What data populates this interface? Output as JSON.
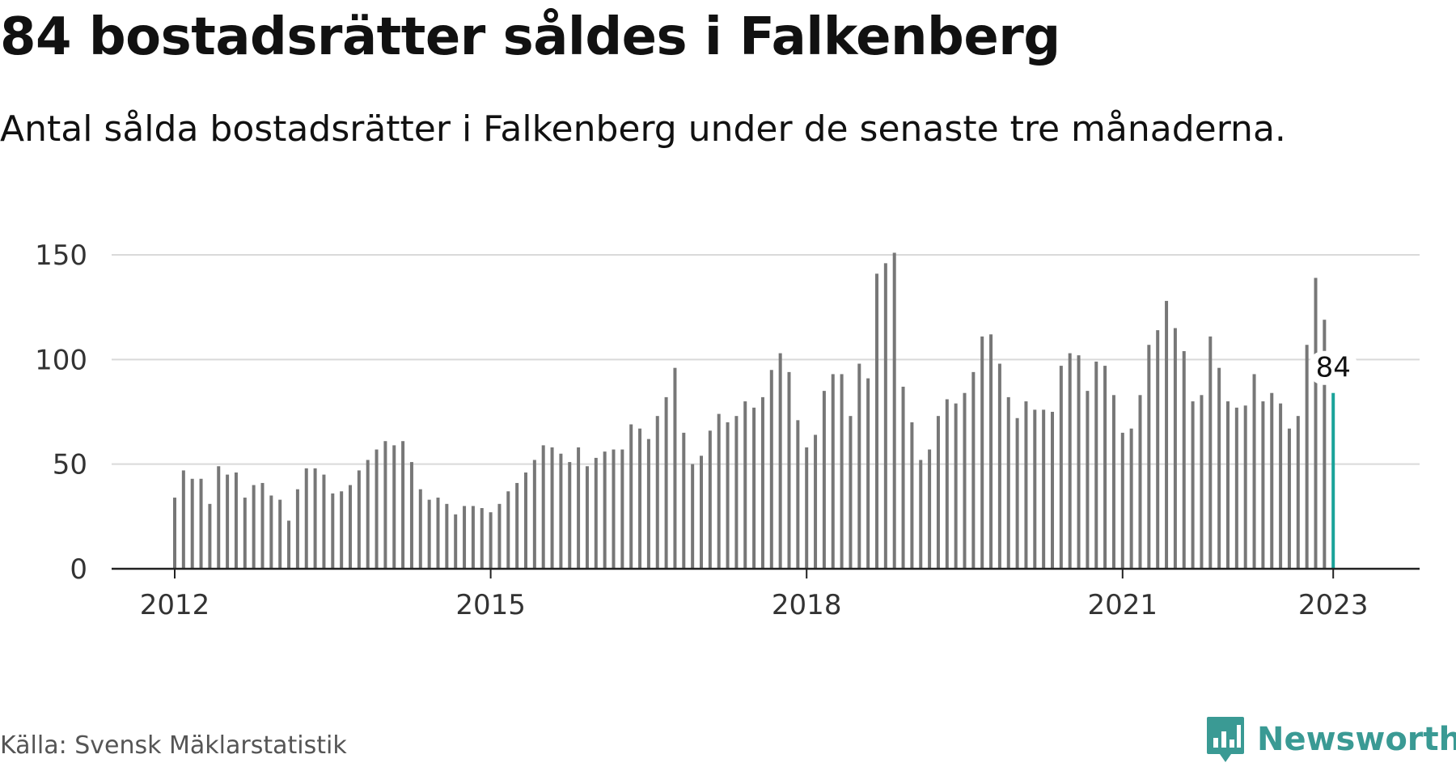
{
  "header": {
    "title": "84 bostadsrätter såldes i Falkenberg",
    "subtitle": "Antal sålda bostadsrätter i Falkenberg under de senaste tre månaderna."
  },
  "footer": {
    "source": "Källa: Svensk Mäklarstatistik",
    "brand": "Newsworthy",
    "brand_icon": "newsworthy-logo-icon"
  },
  "colors": {
    "bar": "#777777",
    "highlight": "#1aa39a",
    "grid": "#d9d9d9",
    "axis": "#222222",
    "brand": "#3a9a94"
  },
  "chart_data": {
    "type": "bar",
    "title": "84 bostadsrätter såldes i Falkenberg",
    "subtitle": "Antal sålda bostadsrätter i Falkenberg under de senaste tre månaderna.",
    "xlabel": "",
    "ylabel": "",
    "ylim": [
      0,
      150
    ],
    "yticks": [
      0,
      50,
      100,
      150
    ],
    "x_tick_labels": [
      "2012",
      "2015",
      "2018",
      "2021",
      "2023"
    ],
    "x_tick_dates": [
      "2012-01",
      "2015-01",
      "2018-01",
      "2021-01",
      "2023-01"
    ],
    "grid": true,
    "x_start": "2012-01",
    "x_end": "2023-01",
    "values": [
      34,
      47,
      43,
      43,
      31,
      49,
      45,
      46,
      34,
      40,
      41,
      35,
      33,
      23,
      38,
      48,
      48,
      45,
      36,
      37,
      40,
      47,
      52,
      57,
      61,
      59,
      61,
      51,
      38,
      33,
      34,
      31,
      26,
      30,
      30,
      29,
      27,
      31,
      37,
      41,
      46,
      52,
      59,
      58,
      55,
      51,
      58,
      49,
      53,
      56,
      57,
      57,
      69,
      67,
      62,
      73,
      82,
      96,
      65,
      50,
      54,
      66,
      74,
      70,
      73,
      80,
      77,
      82,
      95,
      103,
      94,
      71,
      58,
      64,
      85,
      93,
      93,
      73,
      98,
      91,
      141,
      146,
      151,
      87,
      70,
      52,
      57,
      73,
      81,
      79,
      84,
      94,
      111,
      112,
      98,
      82,
      72,
      80,
      76,
      76,
      75,
      97,
      103,
      102,
      85,
      99,
      97,
      83,
      65,
      67,
      83,
      107,
      114,
      128,
      115,
      104,
      80,
      83,
      111,
      96,
      80,
      77,
      78,
      93,
      80,
      84,
      79,
      67,
      73,
      107,
      139,
      119,
      84
    ],
    "highlight": {
      "index": 132,
      "label": "84",
      "value": 84
    }
  }
}
